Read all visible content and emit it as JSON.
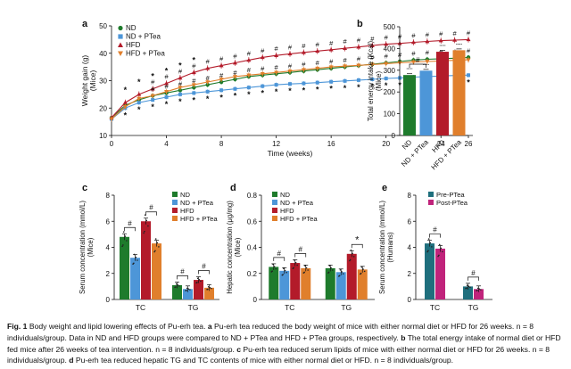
{
  "colors": {
    "ND": "#1e7b2c",
    "ND_PTea": "#4d96d8",
    "HFD": "#b31b2a",
    "HFD_PTea": "#e07f2c",
    "Pre": "#1f6f7d",
    "Post": "#c0237b"
  },
  "caption": {
    "title": "Fig. 1",
    "intro": "Body weight and lipid lowering effects of Pu-erh tea.",
    "a_label": "a",
    "a_text": "Pu-erh tea reduced the body weight of mice with either normal diet or HFD for 26 weeks. n = 8 individuals/group. Data in ND and HFD groups were compared to ND + PTea and HFD + PTea groups, respectively.",
    "b_label": "b",
    "b_text": "The total energy intake of normal diet or HFD fed mice after 26 weeks of tea intervention. n = 8 individuals/group.",
    "c_label": "c",
    "c_text": "Pu-erh tea reduced serum lipids of mice with either normal diet or HFD for 26 weeks. n = 8 individuals/group.",
    "d_label": "d",
    "d_text": "Pu-erh tea reduced hepatic TG and TC contents of mice with either normal diet or HFD. n = 8 individuals/group."
  },
  "chart_data": [
    {
      "panel": "a",
      "type": "line",
      "xlabel": "Time (weeks)",
      "ylabel": "Weight gain (g)",
      "ylabel2": "(Mice)",
      "xlim": [
        0,
        26
      ],
      "ylim": [
        10,
        50
      ],
      "xticks": [
        0,
        4,
        8,
        12,
        16,
        20,
        24,
        26
      ],
      "yticks": [
        10,
        20,
        30,
        40,
        50
      ],
      "x": [
        0,
        1,
        2,
        3,
        4,
        5,
        6,
        7,
        8,
        9,
        10,
        11,
        12,
        13,
        14,
        15,
        16,
        17,
        18,
        19,
        20,
        21,
        22,
        23,
        24,
        25,
        26
      ],
      "series": [
        {
          "name": "ND",
          "color_key": "ND",
          "marker": "circle",
          "values": [
            16.5,
            21,
            23,
            24.5,
            25.5,
            26.5,
            27.5,
            28.5,
            29.5,
            30.5,
            31.5,
            32,
            32.5,
            33,
            33.5,
            34,
            34.5,
            35,
            35.5,
            36,
            36.5,
            37,
            37.5,
            37.8,
            38,
            38.2,
            38.5
          ]
        },
        {
          "name": "ND + PTea",
          "color_key": "ND_PTea",
          "marker": "square",
          "values": [
            16,
            20,
            22,
            23,
            24,
            25,
            25.5,
            26,
            26.5,
            27,
            27.5,
            28,
            28.5,
            28.8,
            29,
            29.3,
            29.6,
            29.9,
            30.2,
            30.5,
            30.8,
            31,
            31.3,
            31.5,
            31.7,
            31.9,
            32
          ]
        },
        {
          "name": "HFD",
          "color_key": "HFD",
          "marker": "triangle-up",
          "values": [
            16.5,
            22,
            25,
            27,
            29,
            31,
            33,
            34.5,
            35.5,
            36.5,
            37.5,
            38.5,
            39.2,
            39.8,
            40.3,
            40.8,
            41.3,
            41.8,
            42.3,
            42.8,
            43.3,
            43.6,
            44,
            44.3,
            44.6,
            44.8,
            45
          ]
        },
        {
          "name": "HFD + PTea",
          "color_key": "HFD_PTea",
          "marker": "triangle-down",
          "values": [
            16,
            20.5,
            23.5,
            24.5,
            26,
            27.5,
            28.5,
            29.5,
            30.5,
            31.5,
            32,
            32.5,
            33,
            33.5,
            34,
            34.5,
            35,
            35.3,
            35.6,
            35.9,
            36.2,
            36.5,
            36.8,
            37,
            37.2,
            37.4,
            37.6
          ]
        }
      ],
      "star_weeks": [
        1,
        2,
        3,
        4,
        5,
        6,
        7,
        8,
        9,
        10,
        11,
        12,
        13,
        14,
        15,
        16,
        17,
        18,
        19,
        20,
        21,
        22,
        23,
        24,
        25,
        26
      ],
      "hash_weeks": [
        3,
        4,
        5,
        6,
        7,
        8,
        9,
        10,
        11,
        12,
        13,
        14,
        15,
        16,
        17,
        18,
        19,
        20,
        21,
        22,
        23,
        24,
        25,
        26
      ],
      "hash_marker": "#",
      "star_marker": "*"
    },
    {
      "panel": "b",
      "type": "bar",
      "ylabel": "Total energy intake (Kcal)",
      "ylabel2": "(Mice)",
      "ylim": [
        0,
        500
      ],
      "yticks": [
        0,
        100,
        200,
        300,
        400,
        500
      ],
      "categories": [
        "ND",
        "ND + PTea",
        "HFD",
        "HFD + PTea"
      ],
      "values": [
        278,
        298,
        385,
        392
      ],
      "color_keys": [
        "ND",
        "ND_PTea",
        "HFD",
        "HFD_PTea"
      ],
      "annotations": [
        {
          "between": [
            0,
            1
          ],
          "label": "#"
        }
      ]
    },
    {
      "panel": "c",
      "type": "bar",
      "ylabel": "Serum concentration (mmol/L)",
      "ylabel2": "(Mice)",
      "ylim": [
        0,
        8
      ],
      "yticks": [
        0,
        2,
        4,
        6,
        8
      ],
      "categories": [
        "TC",
        "TG"
      ],
      "legend": [
        "ND",
        "ND + PTea",
        "HFD",
        "HFD + PTea"
      ],
      "series": [
        {
          "name": "ND",
          "color_key": "ND",
          "values": [
            4.8,
            1.1
          ]
        },
        {
          "name": "ND + PTea",
          "color_key": "ND_PTea",
          "values": [
            3.2,
            0.8
          ]
        },
        {
          "name": "HFD",
          "color_key": "HFD",
          "values": [
            6.0,
            1.5
          ]
        },
        {
          "name": "HFD + PTea",
          "color_key": "HFD_PTea",
          "values": [
            4.3,
            0.9
          ]
        }
      ],
      "annotations": [
        {
          "category": 0,
          "pair": [
            0,
            1
          ],
          "label": "#"
        },
        {
          "category": 0,
          "pair": [
            2,
            3
          ],
          "label": "#"
        },
        {
          "category": 1,
          "pair": [
            0,
            1
          ],
          "label": "#"
        },
        {
          "category": 1,
          "pair": [
            2,
            3
          ],
          "label": "#"
        }
      ]
    },
    {
      "panel": "d",
      "type": "bar",
      "ylabel": "Hepatic concentration (μg/mg)",
      "ylabel2": "(Mice)",
      "ylim": [
        0,
        0.8
      ],
      "yticks": [
        0,
        0.2,
        0.4,
        0.6,
        0.8
      ],
      "categories": [
        "TC",
        "TG"
      ],
      "legend": [
        "ND",
        "ND + PTea",
        "HFD",
        "HFD + PTea"
      ],
      "series": [
        {
          "name": "ND",
          "color_key": "ND",
          "values": [
            0.25,
            0.24
          ]
        },
        {
          "name": "ND + PTea",
          "color_key": "ND_PTea",
          "values": [
            0.22,
            0.21
          ]
        },
        {
          "name": "HFD",
          "color_key": "HFD",
          "values": [
            0.28,
            0.35
          ]
        },
        {
          "name": "HFD + PTea",
          "color_key": "HFD_PTea",
          "values": [
            0.24,
            0.23
          ]
        }
      ],
      "annotations": [
        {
          "category": 0,
          "pair": [
            0,
            1
          ],
          "label": "#"
        },
        {
          "category": 0,
          "pair": [
            2,
            3
          ],
          "label": "#"
        },
        {
          "category": 1,
          "pair": [
            2,
            3
          ],
          "label": "*"
        }
      ]
    },
    {
      "panel": "e",
      "type": "bar",
      "ylabel": "Serum concentration (mmol/L)",
      "ylabel2": "(Humans)",
      "ylim": [
        0,
        8
      ],
      "yticks": [
        0,
        2,
        4,
        6,
        8
      ],
      "categories": [
        "TC",
        "TG"
      ],
      "legend": [
        "Pre-PTea",
        "Post-PTea"
      ],
      "series": [
        {
          "name": "Pre-PTea",
          "color_key": "Pre",
          "values": [
            4.3,
            1.0
          ]
        },
        {
          "name": "Post-PTea",
          "color_key": "Post",
          "values": [
            3.9,
            0.8
          ]
        }
      ],
      "annotations": [
        {
          "category": 0,
          "pair": [
            0,
            1
          ],
          "label": "#"
        },
        {
          "category": 1,
          "pair": [
            0,
            1
          ],
          "label": "#"
        }
      ]
    }
  ]
}
